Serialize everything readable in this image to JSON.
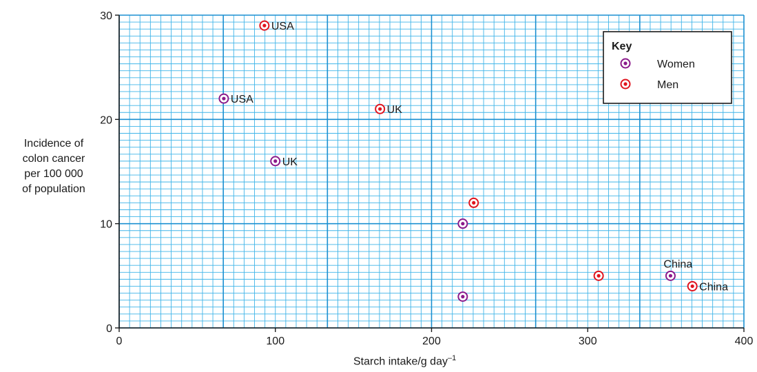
{
  "chart_data": {
    "type": "scatter",
    "title": "",
    "xlabel_main": "Starch intake/g day",
    "xlabel_sup": "–1",
    "ylabel_lines": [
      "Incidence of",
      "colon cancer",
      "per 100 000",
      "of population"
    ],
    "xlim": [
      0,
      400
    ],
    "ylim": [
      0,
      30
    ],
    "x_ticks": [
      0,
      100,
      200,
      300,
      400
    ],
    "y_ticks": [
      0,
      10,
      20,
      30
    ],
    "x_tick_labels": [
      "0",
      "100",
      "200",
      "300",
      "400"
    ],
    "y_tick_labels": [
      "0",
      "10",
      "20",
      "30"
    ],
    "grid": true,
    "legend_position": "top-right",
    "legend_title": "Key",
    "series": [
      {
        "name": "Women",
        "color": "#8b1a8b",
        "points": [
          {
            "x": 67,
            "y": 22,
            "label": "USA"
          },
          {
            "x": 100,
            "y": 16,
            "label": "UK"
          },
          {
            "x": 220,
            "y": 10,
            "label": ""
          },
          {
            "x": 220,
            "y": 3,
            "label": ""
          },
          {
            "x": 353,
            "y": 5,
            "label": "China"
          }
        ]
      },
      {
        "name": "Men",
        "color": "#e0141e",
        "points": [
          {
            "x": 93,
            "y": 29,
            "label": "USA"
          },
          {
            "x": 167,
            "y": 21,
            "label": "UK"
          },
          {
            "x": 227,
            "y": 12,
            "label": ""
          },
          {
            "x": 307,
            "y": 5,
            "label": ""
          },
          {
            "x": 367,
            "y": 4,
            "label": "China"
          }
        ]
      }
    ]
  }
}
